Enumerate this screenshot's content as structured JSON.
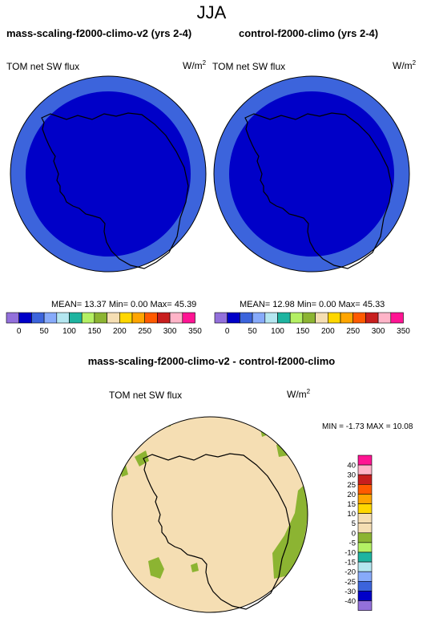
{
  "season": "JJA",
  "panels": [
    {
      "title": "mass-scaling-f2000-climo-v2 (yrs 2-4)",
      "variable": "TOM net SW flux",
      "units": "W/m",
      "units_exp": "2",
      "stats": "MEAN=  13.37  Min=   0.00  Max=  45.39"
    },
    {
      "title": "control-f2000-climo (yrs 2-4)",
      "variable": "TOM net SW flux",
      "units": "W/m",
      "units_exp": "2",
      "stats": "MEAN=  12.98  Min=   0.00  Max=  45.33"
    }
  ],
  "diff": {
    "title": "mass-scaling-f2000-climo-v2 - control-f2000-climo",
    "variable": "TOM net SW flux",
    "units": "W/m",
    "units_exp": "2",
    "minmax": "MIN =   -1.73  MAX =  10.08"
  },
  "chart_data": [
    {
      "type": "heatmap",
      "title": "mass-scaling-f2000-climo-v2 (yrs 2-4)",
      "projection": "south polar stereographic",
      "colorbar": {
        "orientation": "horizontal",
        "tick_labels": [
          "0",
          "50",
          "100",
          "150",
          "200",
          "250",
          "300",
          "350"
        ],
        "colors": [
          "#9370DB",
          "#0000C8",
          "#3C64DC",
          "#87AAFA",
          "#B4E6F0",
          "#1EB4A0",
          "#B4F064",
          "#8CB432",
          "#F5DEB3",
          "#FFD700",
          "#FFA500",
          "#FF5A00",
          "#C81E1E",
          "#FFB4C8",
          "#FF1493"
        ]
      },
      "field": "outer ring approx 0-50 W/m2, interior approx 0-20 W/m2",
      "mean": 13.37,
      "min": 0.0,
      "max": 45.39
    },
    {
      "type": "heatmap",
      "title": "control-f2000-climo (yrs 2-4)",
      "projection": "south polar stereographic",
      "mean": 12.98,
      "min": 0.0,
      "max": 45.33
    },
    {
      "type": "heatmap",
      "title": "mass-scaling-f2000-climo-v2 - control-f2000-climo",
      "projection": "south polar stereographic",
      "colorbar": {
        "orientation": "vertical",
        "tick_labels": [
          "40",
          "30",
          "25",
          "20",
          "15",
          "10",
          "5",
          "0",
          "-5",
          "-10",
          "-15",
          "-20",
          "-25",
          "-30",
          "-40"
        ],
        "colors": [
          "#FF1493",
          "#FFB4C8",
          "#C81E1E",
          "#FF5A00",
          "#FFA500",
          "#FFD700",
          "#F5DEB3",
          "#F5DEB3",
          "#8CB432",
          "#B4F064",
          "#1EB4A0",
          "#B4E6F0",
          "#87AAFA",
          "#3C64DC",
          "#0000C8",
          "#9370DB"
        ]
      },
      "min": -1.73,
      "max": 10.08
    }
  ],
  "colors": {
    "ring": "#3c64dc",
    "interior": "#0000c8",
    "diff_background": "#f5deb3",
    "diff_positive": "#8cb432"
  }
}
